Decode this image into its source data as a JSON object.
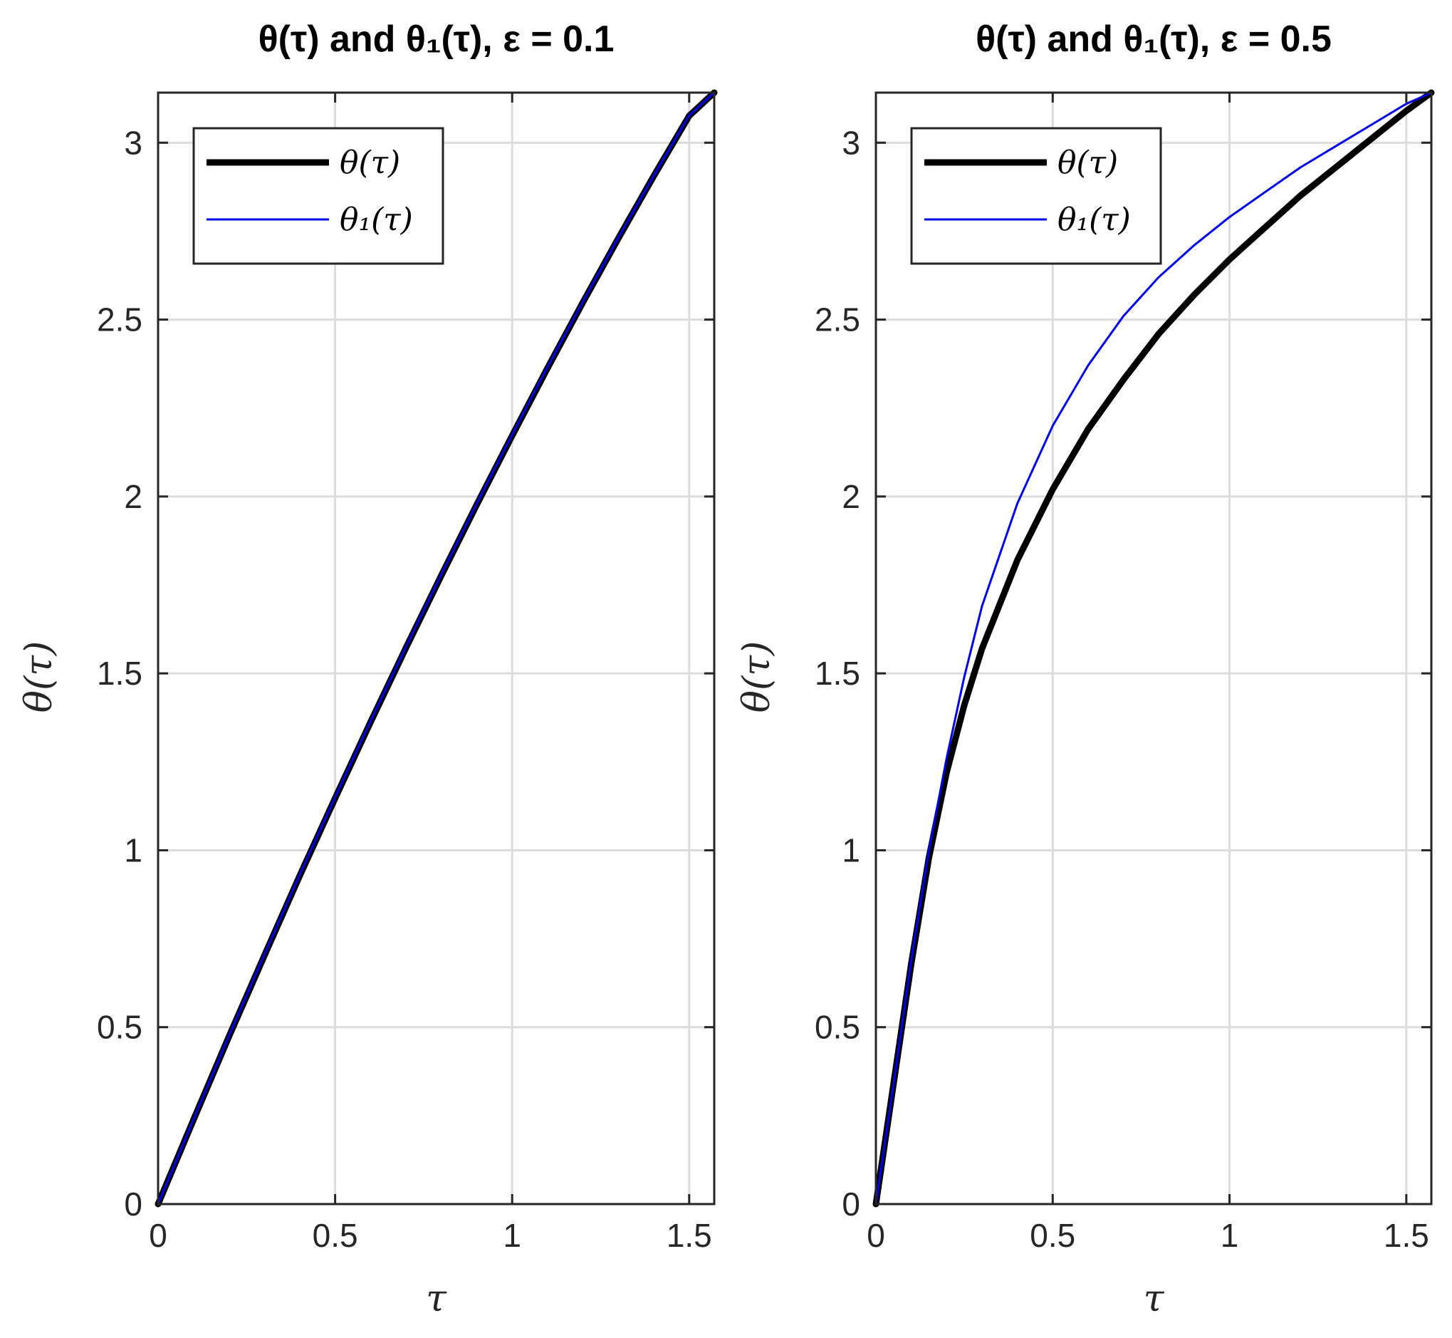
{
  "chart_data": [
    {
      "type": "line",
      "title": "θ(τ) and θ₁(τ), ε = 0.1",
      "xlabel": "τ",
      "ylabel": "θ(τ)",
      "xlim": [
        0,
        1.5708
      ],
      "ylim": [
        0,
        3.1416
      ],
      "xticks": [
        0,
        0.5,
        1,
        1.5
      ],
      "xtick_labels": [
        "0",
        "0.5",
        "1",
        "1.5"
      ],
      "yticks": [
        0,
        0.5,
        1,
        1.5,
        2,
        2.5,
        3
      ],
      "ytick_labels": [
        "0",
        "0.5",
        "1",
        "1.5",
        "2",
        "2.5",
        "3"
      ],
      "grid": true,
      "legend_position": "top-left",
      "series": [
        {
          "name": "θ(τ)",
          "color": "#000000",
          "style": "thick",
          "x": [
            0,
            0.1,
            0.2,
            0.3,
            0.4,
            0.5,
            0.6,
            0.7,
            0.8,
            0.9,
            1.0,
            1.1,
            1.2,
            1.3,
            1.4,
            1.5,
            1.5708
          ],
          "y": [
            0,
            0.238,
            0.473,
            0.702,
            0.928,
            1.147,
            1.362,
            1.572,
            1.777,
            1.977,
            2.172,
            2.363,
            2.549,
            2.73,
            2.906,
            3.076,
            3.1416
          ]
        },
        {
          "name": "θ₁(τ)",
          "color": "#0000ee",
          "style": "thin",
          "x": [
            0,
            0.1,
            0.2,
            0.3,
            0.4,
            0.5,
            0.6,
            0.7,
            0.8,
            0.9,
            1.0,
            1.1,
            1.2,
            1.3,
            1.4,
            1.5,
            1.5708
          ],
          "y": [
            0,
            0.239,
            0.475,
            0.705,
            0.931,
            1.15,
            1.365,
            1.575,
            1.78,
            1.98,
            2.175,
            2.366,
            2.551,
            2.732,
            2.907,
            3.077,
            3.1416
          ]
        }
      ]
    },
    {
      "type": "line",
      "title": "θ(τ) and θ₁(τ), ε = 0.5",
      "xlabel": "τ",
      "ylabel": "θ(τ)",
      "xlim": [
        0,
        1.5708
      ],
      "ylim": [
        0,
        3.1416
      ],
      "xticks": [
        0,
        0.5,
        1,
        1.5
      ],
      "xtick_labels": [
        "0",
        "0.5",
        "1",
        "1.5"
      ],
      "yticks": [
        0,
        0.5,
        1,
        1.5,
        2,
        2.5,
        3
      ],
      "ytick_labels": [
        "0",
        "0.5",
        "1",
        "1.5",
        "2",
        "2.5",
        "3"
      ],
      "grid": true,
      "legend_position": "top-left",
      "series": [
        {
          "name": "θ(τ)",
          "color": "#000000",
          "style": "thick",
          "x": [
            0,
            0.05,
            0.1,
            0.15,
            0.2,
            0.25,
            0.3,
            0.4,
            0.5,
            0.6,
            0.7,
            0.8,
            0.9,
            1.0,
            1.1,
            1.2,
            1.3,
            1.4,
            1.5,
            1.5708
          ],
          "y": [
            0,
            0.34,
            0.68,
            0.98,
            1.22,
            1.41,
            1.57,
            1.82,
            2.02,
            2.19,
            2.33,
            2.46,
            2.57,
            2.67,
            2.76,
            2.85,
            2.93,
            3.01,
            3.09,
            3.1416
          ]
        },
        {
          "name": "θ₁(τ)",
          "color": "#0000ee",
          "style": "thin",
          "x": [
            0,
            0.05,
            0.1,
            0.15,
            0.2,
            0.25,
            0.3,
            0.4,
            0.5,
            0.6,
            0.7,
            0.8,
            0.9,
            1.0,
            1.1,
            1.2,
            1.3,
            1.4,
            1.5,
            1.5708
          ],
          "y": [
            0,
            0.34,
            0.69,
            1.0,
            1.26,
            1.49,
            1.69,
            1.98,
            2.2,
            2.37,
            2.51,
            2.62,
            2.71,
            2.79,
            2.86,
            2.93,
            2.99,
            3.05,
            3.11,
            3.1416
          ]
        }
      ]
    }
  ]
}
